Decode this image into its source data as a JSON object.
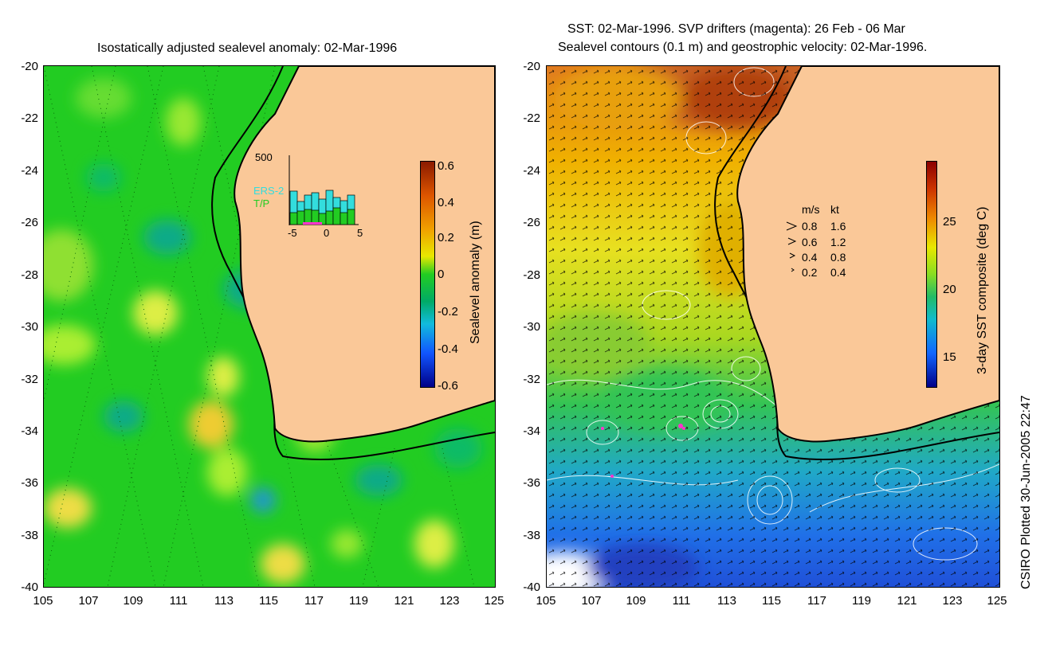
{
  "left_panel": {
    "title": "Isostatically adjusted sealevel anomaly: 02-Mar-1996",
    "colorbar": {
      "label": "Sealevel anomaly (m)",
      "ticks": [
        "0.6",
        "0.4",
        "0.2",
        "0",
        "-0.2",
        "-0.4",
        "-0.6"
      ]
    },
    "inset": {
      "ymax_label": "500",
      "series": [
        "ERS-2",
        "T/P"
      ],
      "series_colors": [
        "#33dddd",
        "#22cc22"
      ],
      "xticks": [
        "-5",
        "0",
        "5"
      ]
    }
  },
  "right_panel": {
    "title_line1": "SST: 02-Mar-1996. SVP drifters (magenta): 26 Feb - 06 Mar",
    "title_line2": "Sealevel contours (0.1 m) and geostrophic velocity: 02-Mar-1996.",
    "colorbar": {
      "label": "3-day SST composite (deg C)",
      "ticks": [
        "25",
        "20",
        "15"
      ]
    },
    "legend": {
      "header_ms": "m/s",
      "header_kt": "kt",
      "rows": [
        {
          "ms": "0.8",
          "kt": "1.6"
        },
        {
          "ms": "0.6",
          "kt": "1.2"
        },
        {
          "ms": "0.4",
          "kt": "0.8"
        },
        {
          "ms": "0.2",
          "kt": "0.4"
        }
      ]
    }
  },
  "axes": {
    "y_ticks": [
      "-20",
      "-22",
      "-24",
      "-26",
      "-28",
      "-30",
      "-32",
      "-34",
      "-36",
      "-38",
      "-40"
    ],
    "x_ticks": [
      "105",
      "107",
      "109",
      "111",
      "113",
      "115",
      "117",
      "119",
      "121",
      "123",
      "125"
    ]
  },
  "footer": {
    "credit": "CSIRO Plotted 30-Jun-2005 22:47"
  },
  "colors": {
    "land": "#fac898",
    "ocean_green": "#22cc22",
    "coast": "#000000"
  }
}
